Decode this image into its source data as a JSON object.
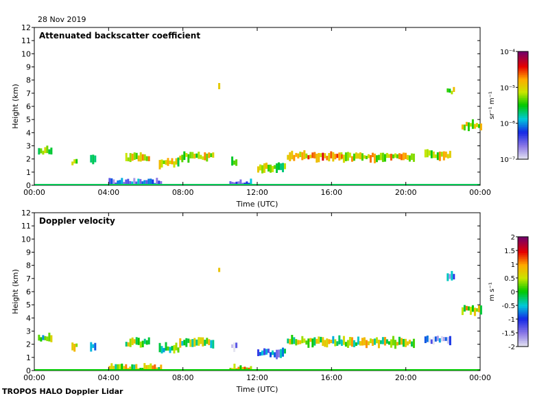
{
  "date": "28 Nov 2019",
  "footer": "TROPOS HALO Doppler Lidar",
  "chart_data": [
    {
      "type": "heatmap",
      "title": "Attenuated backscatter coefficient",
      "xlabel": "Time (UTC)",
      "ylabel": "Height (km)",
      "xticks": [
        "00:00",
        "04:00",
        "08:00",
        "12:00",
        "16:00",
        "20:00",
        "00:00"
      ],
      "xlim": [
        0,
        24
      ],
      "yticks": [
        "0",
        "1",
        "2",
        "3",
        "4",
        "5",
        "6",
        "7",
        "8",
        "9",
        "10",
        "11",
        "12"
      ],
      "ylim": [
        0,
        12
      ],
      "colorbar": {
        "scale": "log",
        "range": [
          1e-07,
          0.0001
        ],
        "ticks": [
          "10⁻⁷",
          "10⁻⁶",
          "10⁻⁵",
          "10⁻⁴"
        ],
        "label": "sr⁻¹ m⁻¹"
      },
      "features": [
        {
          "t0": 0.2,
          "t1": 0.9,
          "h": 2.6,
          "v": -5.3
        },
        {
          "t0": 2.0,
          "t1": 2.3,
          "h": 1.8,
          "v": -5.5
        },
        {
          "t0": 3.0,
          "t1": 3.3,
          "h": 1.95,
          "v": -5.4
        },
        {
          "t0": 4.9,
          "t1": 6.2,
          "h": 2.1,
          "v": -5.0
        },
        {
          "t0": 6.7,
          "t1": 7.7,
          "h": 1.7,
          "v": -5.2
        },
        {
          "t0": 7.8,
          "t1": 9.6,
          "h": 2.15,
          "v": -5.1
        },
        {
          "t0": 9.9,
          "t1": 10.0,
          "h": 7.5,
          "v": -5.0
        },
        {
          "t0": 10.6,
          "t1": 10.9,
          "h": 1.85,
          "v": -5.5
        },
        {
          "t0": 12.0,
          "t1": 13.5,
          "h": 1.35,
          "v": -5.3
        },
        {
          "t0": 13.6,
          "t1": 16.5,
          "h": 2.2,
          "v": -4.8
        },
        {
          "t0": 16.5,
          "t1": 20.4,
          "h": 2.15,
          "v": -5.0
        },
        {
          "t0": 21.0,
          "t1": 22.4,
          "h": 2.3,
          "v": -5.1
        },
        {
          "t0": 22.2,
          "t1": 22.6,
          "h": 7.2,
          "v": -5.3
        },
        {
          "t0": 23.0,
          "t1": 24.0,
          "h": 4.5,
          "v": -5.0
        },
        {
          "t0": 4.0,
          "t1": 6.8,
          "h": 0.2,
          "v": -6.3
        },
        {
          "t0": 10.5,
          "t1": 11.7,
          "h": 0.3,
          "v": -6.3
        }
      ]
    },
    {
      "type": "heatmap",
      "title": "Doppler velocity",
      "xlabel": "Time (UTC)",
      "ylabel": "Height (km)",
      "xticks": [
        "00:00",
        "04:00",
        "08:00",
        "12:00",
        "16:00",
        "20:00",
        "00:00"
      ],
      "xlim": [
        0,
        24
      ],
      "yticks": [
        "0",
        "1",
        "2",
        "3",
        "4",
        "5",
        "6",
        "7",
        "8",
        "9",
        "10",
        "11",
        "12"
      ],
      "ylim": [
        0,
        12
      ],
      "colorbar": {
        "scale": "linear",
        "range": [
          -2,
          2
        ],
        "ticks": [
          "-2",
          "-1.5",
          "-1",
          "-0.5",
          "0",
          "0.5",
          "1",
          "1.5",
          "2"
        ],
        "label": "m s⁻¹"
      },
      "features": [
        {
          "t0": 0.2,
          "t1": 0.9,
          "h": 2.5,
          "v": 0.0
        },
        {
          "t0": 2.0,
          "t1": 2.3,
          "h": 1.8,
          "v": 0.1
        },
        {
          "t0": 3.0,
          "t1": 3.3,
          "h": 1.95,
          "v": -0.2
        },
        {
          "t0": 4.9,
          "t1": 6.2,
          "h": 2.1,
          "v": 0.3
        },
        {
          "t0": 6.7,
          "t1": 7.7,
          "h": 1.7,
          "v": 0.0
        },
        {
          "t0": 7.8,
          "t1": 9.6,
          "h": 2.15,
          "v": 0.2
        },
        {
          "t0": 9.9,
          "t1": 10.0,
          "h": 7.5,
          "v": 0.3
        },
        {
          "t0": 10.6,
          "t1": 10.9,
          "h": 1.85,
          "v": -1.5
        },
        {
          "t0": 12.0,
          "t1": 13.5,
          "h": 1.35,
          "v": -0.8
        },
        {
          "t0": 13.6,
          "t1": 16.5,
          "h": 2.2,
          "v": 0.2
        },
        {
          "t0": 16.5,
          "t1": 20.4,
          "h": 2.15,
          "v": 0.3
        },
        {
          "t0": 21.0,
          "t1": 22.4,
          "h": 2.3,
          "v": -1.4
        },
        {
          "t0": 22.2,
          "t1": 22.6,
          "h": 7.2,
          "v": -1.2
        },
        {
          "t0": 23.0,
          "t1": 24.0,
          "h": 4.6,
          "v": 0.5
        },
        {
          "t0": 4.0,
          "t1": 6.8,
          "h": 0.2,
          "v": 0.4
        },
        {
          "t0": 10.5,
          "t1": 11.7,
          "h": 0.3,
          "v": 0.6
        }
      ]
    }
  ]
}
